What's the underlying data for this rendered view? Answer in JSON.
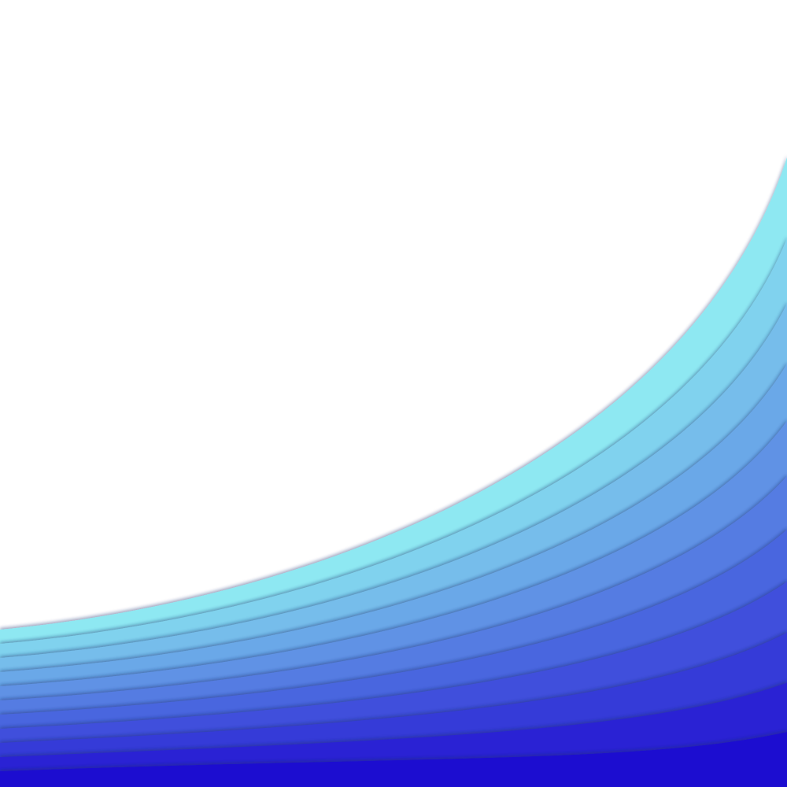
{
  "background": {
    "color": "#ffffff"
  },
  "wave": {
    "band_colors": [
      "#8ee8f2",
      "#80d2ee",
      "#76bdeb",
      "#6ba8e8",
      "#6092e5",
      "#557ce2",
      "#4a66df",
      "#3f50dc",
      "#343ad8",
      "#2924d4",
      "#1f10d0"
    ],
    "shadow_color": "#1a2a6c"
  }
}
